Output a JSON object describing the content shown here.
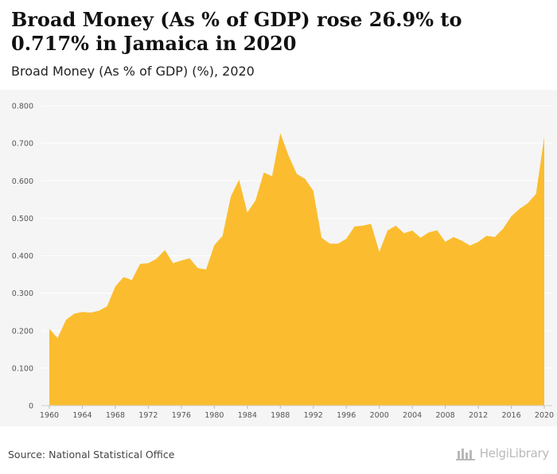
{
  "header": {
    "title": "Broad Money (As % of GDP) rose 26.9% to 0.717% in Jamaica in 2020",
    "subtitle": "Broad Money (As % of GDP) (%), 2020"
  },
  "footer": {
    "source": "Source: National Statistical Office",
    "brand": "HelgiLibrary"
  },
  "colors": {
    "area_fill": "#fbbd2f",
    "plot_background": "#f5f5f5",
    "grid": "#ffffff",
    "axis_text": "#555555"
  },
  "chart_data": {
    "type": "area",
    "title": "Broad Money (As % of GDP) rose 26.9% to 0.717% in Jamaica in 2020",
    "subtitle": "Broad Money (As % of GDP) (%), 2020",
    "xlabel": "",
    "ylabel": "",
    "ylim": [
      0,
      0.8
    ],
    "yticks": [
      "0",
      "0.100",
      "0.200",
      "0.300",
      "0.400",
      "0.500",
      "0.600",
      "0.700",
      "0.800"
    ],
    "xticks": [
      "1960",
      "1964",
      "1968",
      "1972",
      "1976",
      "1980",
      "1984",
      "1988",
      "1992",
      "1996",
      "2000",
      "2004",
      "2008",
      "2012",
      "2016",
      "2020"
    ],
    "grid": true,
    "legend": "none",
    "series": [
      {
        "x": [
          1960,
          1961,
          1962,
          1963,
          1964,
          1965,
          1966,
          1967,
          1968,
          1969,
          1970,
          1971,
          1972,
          1973,
          1974,
          1975,
          1976,
          1977,
          1978,
          1979,
          1980,
          1981,
          1982,
          1983,
          1984,
          1985,
          1986,
          1987,
          1988,
          1989,
          1990,
          1991,
          1992,
          1993,
          1994,
          1995,
          1996,
          1997,
          1998,
          1999,
          2000,
          2001,
          2002,
          2003,
          2004,
          2005,
          2006,
          2007,
          2008,
          2009,
          2010,
          2011,
          2012,
          2013,
          2014,
          2015,
          2016,
          2017,
          2018,
          2019,
          2020
        ],
        "values": [
          0.205,
          0.18,
          0.228,
          0.245,
          0.25,
          0.248,
          0.253,
          0.265,
          0.318,
          0.343,
          0.335,
          0.378,
          0.38,
          0.392,
          0.415,
          0.38,
          0.387,
          0.393,
          0.367,
          0.363,
          0.428,
          0.453,
          0.558,
          0.603,
          0.515,
          0.548,
          0.622,
          0.612,
          0.727,
          0.667,
          0.618,
          0.605,
          0.573,
          0.448,
          0.432,
          0.432,
          0.445,
          0.478,
          0.48,
          0.485,
          0.41,
          0.467,
          0.48,
          0.46,
          0.467,
          0.448,
          0.462,
          0.468,
          0.437,
          0.45,
          0.44,
          0.427,
          0.437,
          0.453,
          0.45,
          0.472,
          0.505,
          0.525,
          0.54,
          0.565,
          0.717
        ]
      }
    ]
  }
}
